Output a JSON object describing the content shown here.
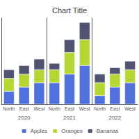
{
  "chart_data": [
    {
      "type": "bar",
      "title": "Chart Title",
      "xlabel": "2020",
      "stacked": true,
      "grid": false,
      "tick_labels": "x",
      "legend": "bottom",
      "categories": [
        "North",
        "East",
        "West"
      ],
      "ylim": [
        0,
        20
      ],
      "series": [
        {
          "name": "Apples",
          "values": [
            3,
            4,
            5
          ]
        },
        {
          "name": "Oranges",
          "values": [
            3,
            3,
            3
          ]
        },
        {
          "name": "Bananas",
          "values": [
            2,
            2,
            2.5
          ]
        }
      ]
    },
    {
      "type": "bar",
      "xlabel": "2021",
      "stacked": true,
      "grid": false,
      "tick_labels": "x",
      "categories": [
        "North",
        "East",
        "West"
      ],
      "ylim": [
        0,
        20
      ],
      "series": [
        {
          "name": "Apples",
          "values": [
            5,
            7,
            9
          ]
        },
        {
          "name": "Oranges",
          "values": [
            3,
            5,
            6
          ]
        },
        {
          "name": "Bananas",
          "values": [
            1.5,
            3,
            4
          ]
        }
      ]
    },
    {
      "type": "bar",
      "xlabel": "2022",
      "stacked": true,
      "grid": false,
      "tick_labels": "x",
      "categories": [
        "North",
        "East",
        "West"
      ],
      "ylim": [
        0,
        20
      ],
      "series": [
        {
          "name": "Apples",
          "values": [
            2,
            4,
            5
          ]
        },
        {
          "name": "Oranges",
          "values": [
            3,
            3,
            3
          ]
        },
        {
          "name": "Bananas",
          "values": [
            2,
            1.5,
            2
          ]
        }
      ]
    }
  ]
}
